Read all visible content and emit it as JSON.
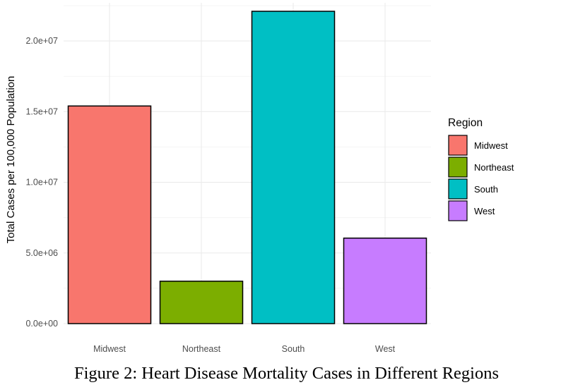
{
  "caption": "Figure 2: Heart Disease Mortality Cases in Different Regions",
  "chart_data": {
    "type": "bar",
    "title": "",
    "xlabel": "",
    "ylabel": "Total Cases per 100,000 Population",
    "categories": [
      "Midwest",
      "Northeast",
      "South",
      "West"
    ],
    "values": [
      15400000,
      3000000,
      22100000,
      6050000
    ],
    "colors": [
      "#F8766D",
      "#7CAE00",
      "#00BFC4",
      "#C77CFF"
    ],
    "bar_outline": "#000000",
    "ylim": [
      0,
      22500000
    ],
    "yticks": [
      0,
      5000000,
      10000000,
      15000000,
      20000000
    ],
    "ytick_labels": [
      "0.0e+00",
      "5.0e+06",
      "1.0e+07",
      "1.5e+07",
      "2.0e+07"
    ],
    "grid": true,
    "legend": {
      "title": "Region",
      "position": "right",
      "entries": [
        "Midwest",
        "Northeast",
        "South",
        "West"
      ]
    }
  }
}
